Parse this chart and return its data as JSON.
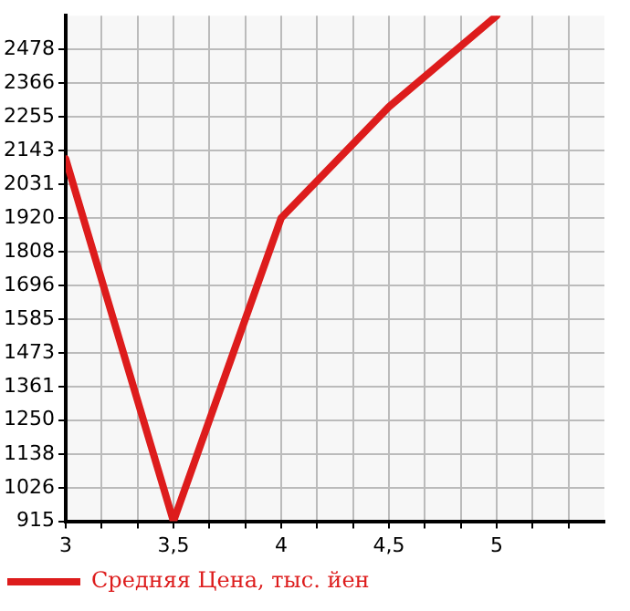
{
  "chart_data": {
    "type": "line",
    "x": [
      3,
      3.5,
      4,
      4.5,
      5
    ],
    "series": [
      {
        "name": "Средняя Цена, тыс. йен",
        "color": "#dd1c1c",
        "values": [
          2115,
          915,
          1920,
          2288,
          2590
        ]
      }
    ],
    "xlim": [
      3,
      5.5
    ],
    "xticks": [
      3,
      {
        "value": 3.1667,
        "label": null
      },
      {
        "value": 3.3333,
        "label": null
      },
      {
        "value": 3.5,
        "label": "3,5"
      },
      {
        "value": 3.6667,
        "label": null
      },
      {
        "value": 3.8333,
        "label": null
      },
      4,
      {
        "value": 4.1667,
        "label": null
      },
      {
        "value": 4.3333,
        "label": null
      },
      {
        "value": 4.5,
        "label": "4,5"
      },
      {
        "value": 4.6667,
        "label": null
      },
      {
        "value": 4.8333,
        "label": null
      },
      5,
      {
        "value": 5.1667,
        "label": null
      },
      {
        "value": 5.3333,
        "label": null
      }
    ],
    "ylim": [
      915,
      2590
    ],
    "yticks": [
      915,
      1026,
      1138,
      1250,
      1361,
      1473,
      1585,
      1696,
      1808,
      1920,
      2031,
      2143,
      2255,
      2366,
      2478
    ],
    "grid": true,
    "legend": "bottom left",
    "line_style": "solid"
  }
}
